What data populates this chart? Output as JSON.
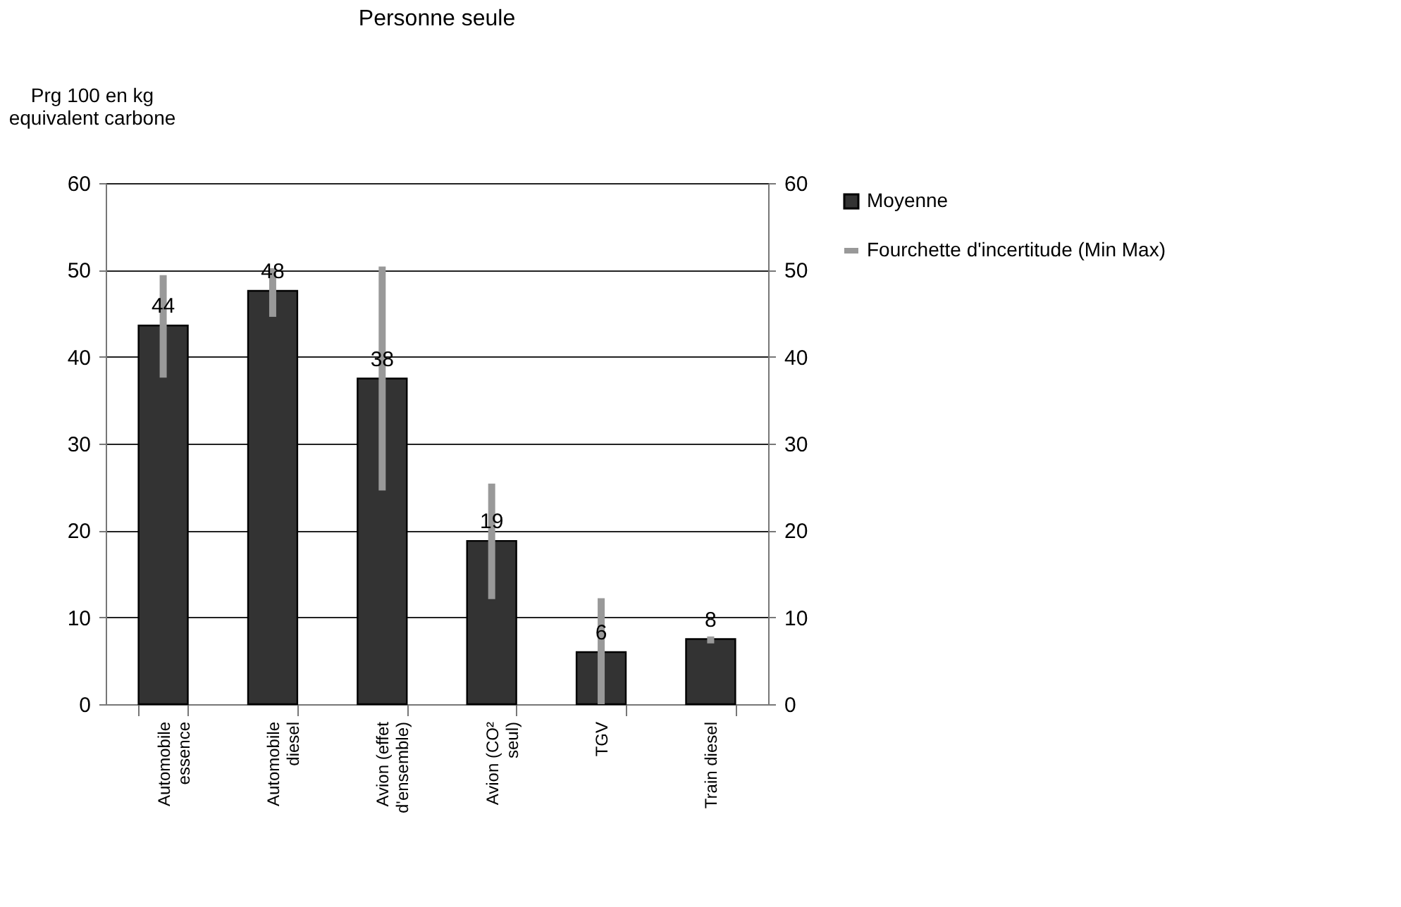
{
  "chart_data": {
    "type": "bar",
    "title": "Personne seule",
    "ylabel": "Prg 100 en kg equivalent carbone",
    "categories": [
      "Automobile essence",
      "Automobile diesel",
      "Avion (effet d'ensemble)",
      "Avion (CO² seul)",
      "TGV",
      "Train diesel"
    ],
    "series": [
      {
        "name": "Moyenne",
        "color": "#333333",
        "values": [
          43.6,
          47.6,
          37.5,
          18.8,
          6.0,
          7.5
        ],
        "errors": [
          [
            37.6,
            49.4
          ],
          [
            44.6,
            50.2
          ],
          [
            24.6,
            50.4
          ],
          [
            12.1,
            25.4
          ],
          [
            0,
            12.2
          ],
          [
            7.0,
            7.8
          ]
        ],
        "value_labels": [
          "44",
          "48",
          "38",
          "19",
          "6",
          "8"
        ]
      }
    ],
    "annotations": [
      "Fourchette d'incertitude (Min Max)"
    ],
    "ylim": [
      0,
      60
    ],
    "yticks": [
      0,
      10,
      20,
      30,
      40,
      50,
      60
    ],
    "y2lim": [
      0,
      60
    ],
    "y2ticks": [
      0,
      10,
      20,
      30,
      40,
      50,
      60
    ],
    "grid": "y",
    "legend": "right"
  }
}
